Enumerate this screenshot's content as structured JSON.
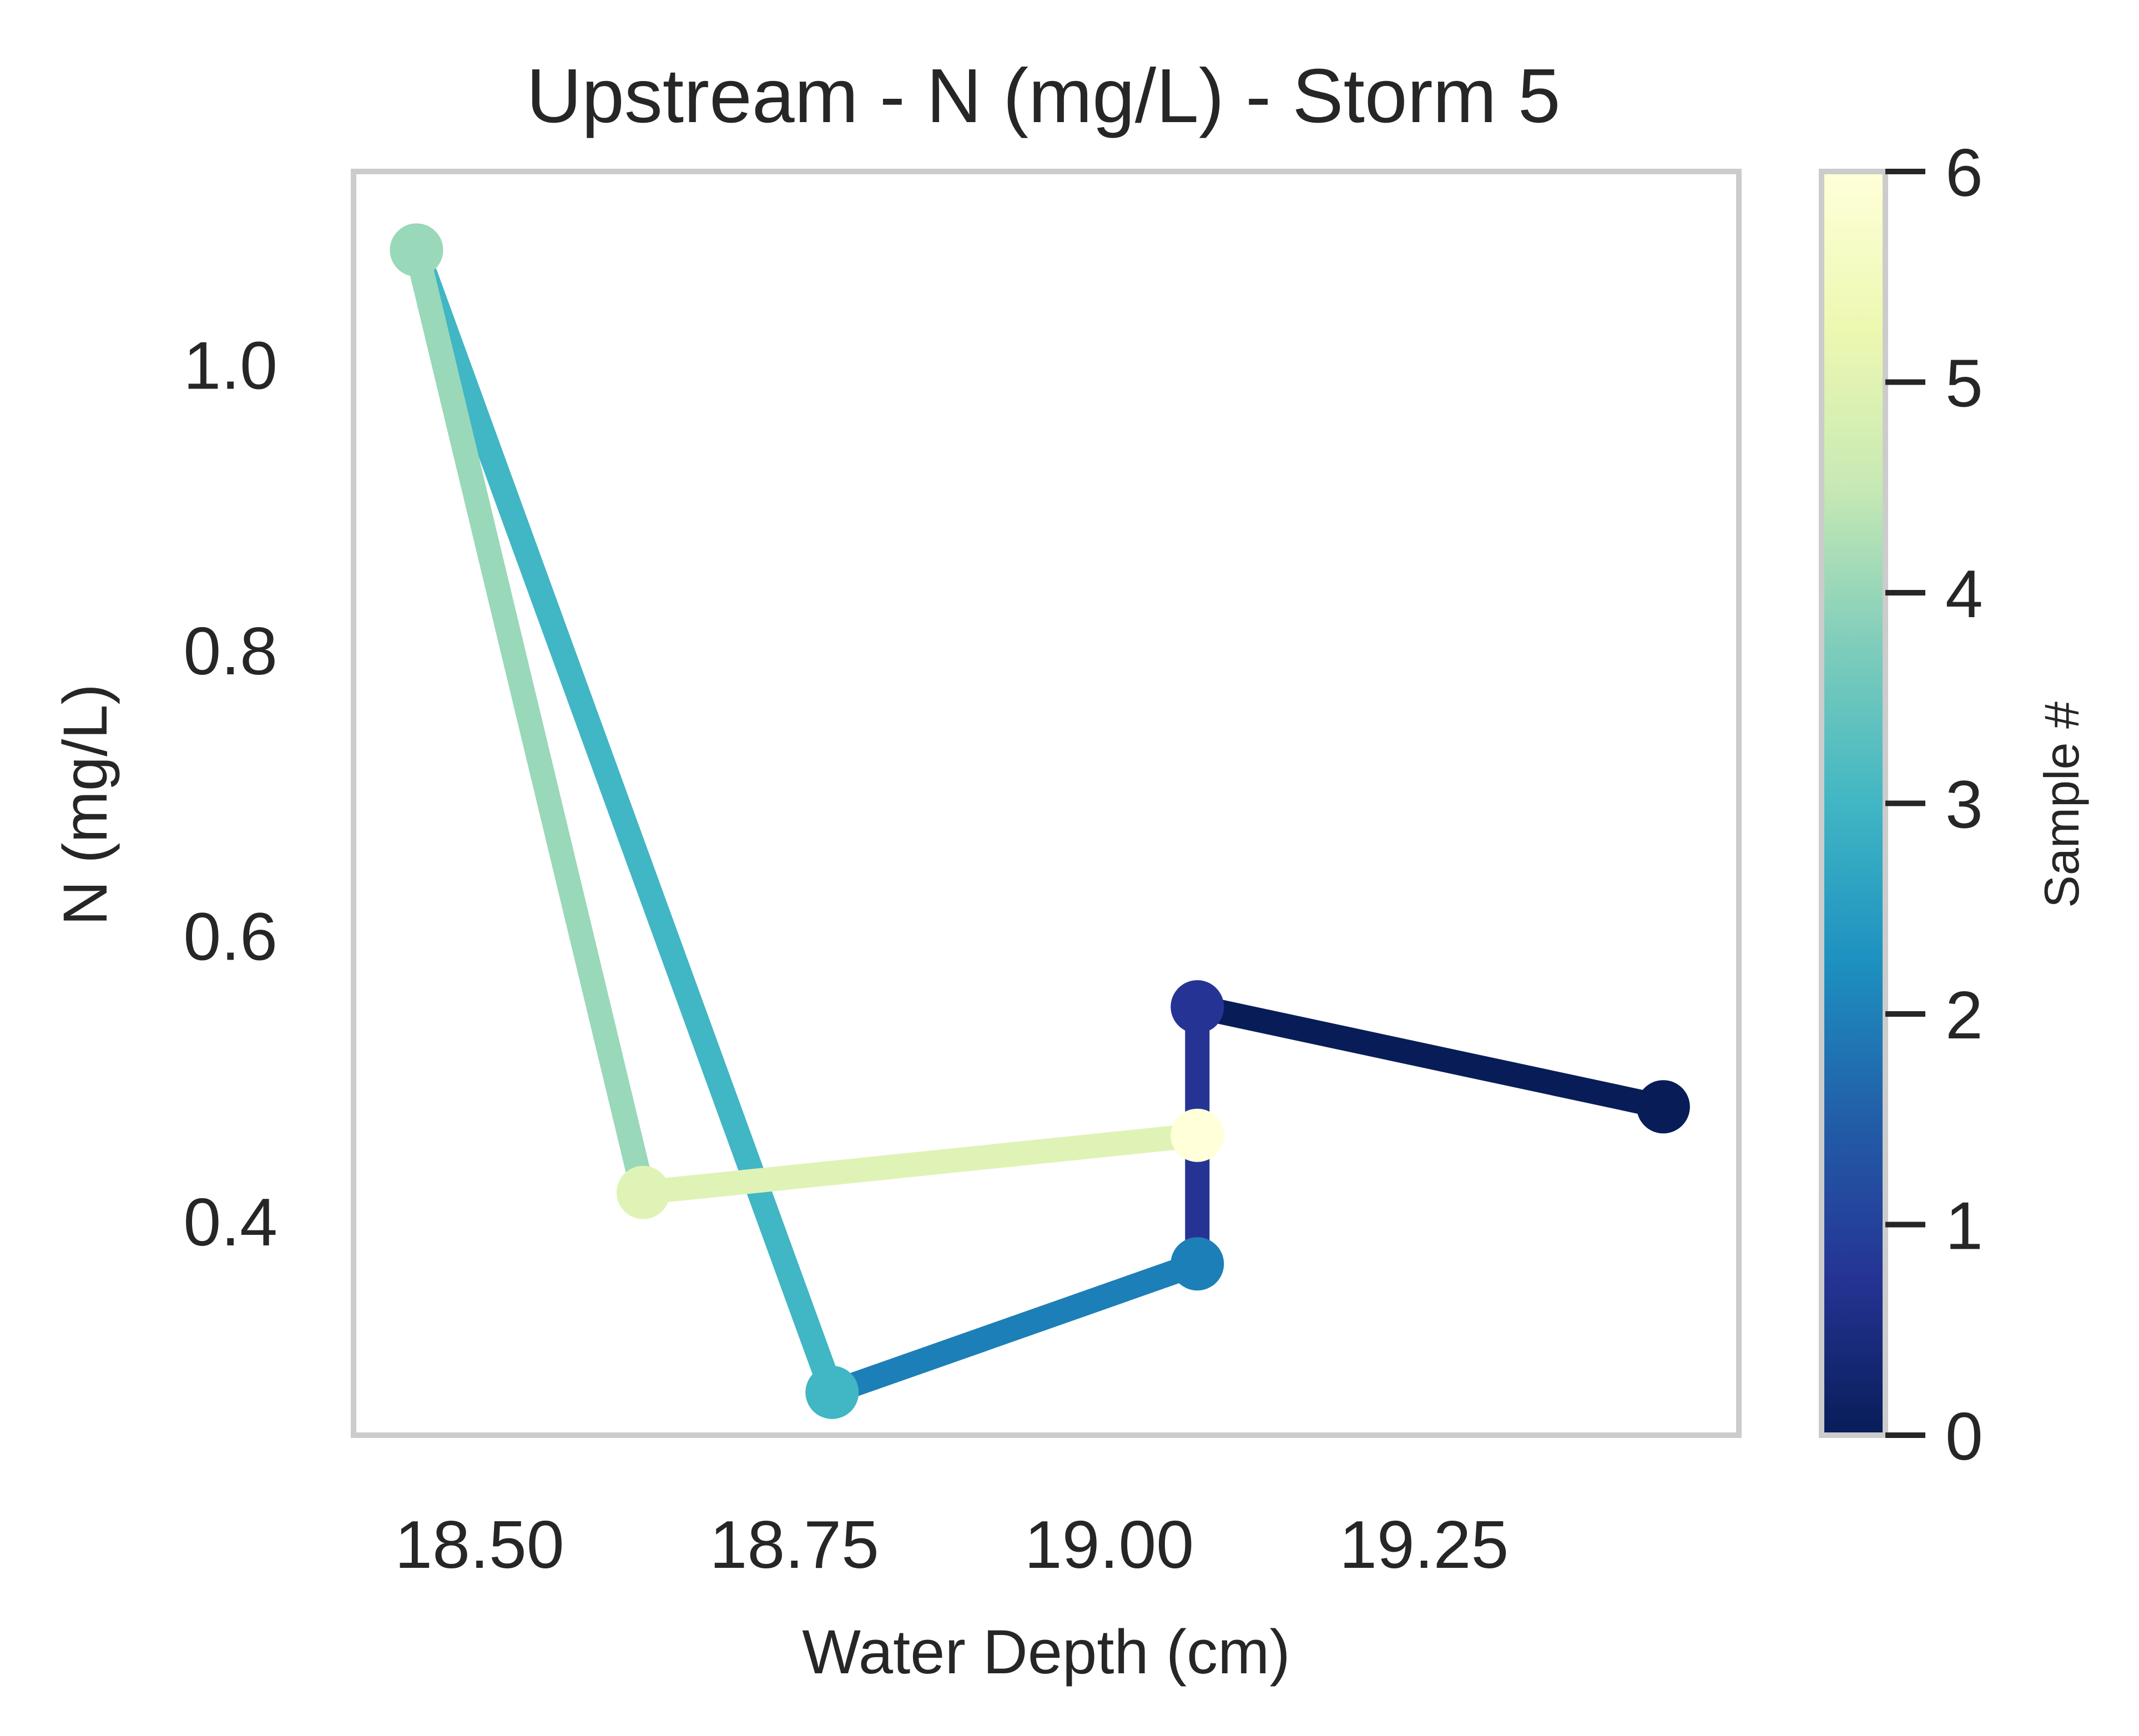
{
  "chart_data": {
    "type": "line",
    "title": "Upstream - N (mg/L) - Storm 5",
    "xlabel": "Water Depth (cm)",
    "ylabel": "N (mg/L)",
    "xlim": [
      18.4,
      19.5
    ],
    "ylim": [
      0.25,
      1.135
    ],
    "xticks": [
      18.5,
      18.75,
      19.0,
      19.25
    ],
    "xtick_labels": [
      "18.50",
      "18.75",
      "19.00",
      "19.25"
    ],
    "yticks": [
      0.4,
      0.6,
      0.8,
      1.0
    ],
    "ytick_labels": [
      "0.4",
      "0.6",
      "0.8",
      "1.0"
    ],
    "grid": false,
    "colormap": "YlGnBu_r",
    "colorbar": {
      "label": "Sample #",
      "range": [
        0,
        6
      ],
      "ticks": [
        0,
        1,
        2,
        3,
        4,
        5,
        6
      ],
      "tick_labels": [
        "0",
        "1",
        "2",
        "3",
        "4",
        "5",
        "6"
      ]
    },
    "points": [
      {
        "sample": 0,
        "x": 19.44,
        "y": 0.48,
        "color": "#081d58"
      },
      {
        "sample": 1,
        "x": 19.07,
        "y": 0.55,
        "color": "#253494"
      },
      {
        "sample": 2,
        "x": 19.07,
        "y": 0.37,
        "color": "#1d7fb7"
      },
      {
        "sample": 3,
        "x": 18.78,
        "y": 0.28,
        "color": "#41b6c4"
      },
      {
        "sample": 4,
        "x": 18.45,
        "y": 1.08,
        "color": "#99d8b9"
      },
      {
        "sample": 5,
        "x": 18.63,
        "y": 0.42,
        "color": "#e0f3b6"
      },
      {
        "sample": 6,
        "x": 19.07,
        "y": 0.46,
        "color": "#ffffd9"
      }
    ],
    "segments": [
      {
        "from_sample": 0,
        "to_sample": 1,
        "color": "#081d58"
      },
      {
        "from_sample": 1,
        "to_sample": 2,
        "color": "#253494"
      },
      {
        "from_sample": 2,
        "to_sample": 3,
        "color": "#1d7fb7"
      },
      {
        "from_sample": 3,
        "to_sample": 4,
        "color": "#41b6c4"
      },
      {
        "from_sample": 4,
        "to_sample": 5,
        "color": "#99d8b9"
      },
      {
        "from_sample": 5,
        "to_sample": 6,
        "color": "#e0f3b6"
      }
    ],
    "colorbar_stops": [
      "#081d58",
      "#253494",
      "#225ea8",
      "#1d91c0",
      "#41b6c4",
      "#7fcdbb",
      "#c7e9b4",
      "#edf8b1",
      "#ffffd9"
    ]
  }
}
